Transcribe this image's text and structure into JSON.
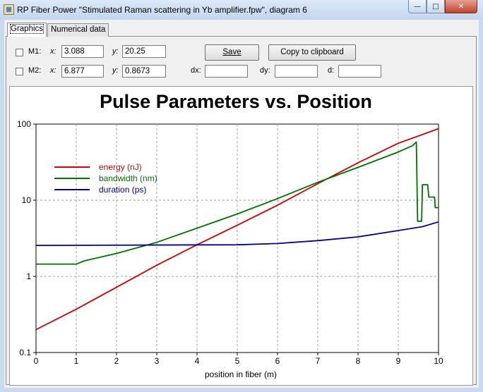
{
  "window": {
    "title": "RP Fiber Power \"Stimulated Raman scattering in Yb amplifier.fpw\", diagram 6",
    "min_glyph": "—",
    "max_glyph": "□",
    "close_glyph": "✕"
  },
  "tabs": [
    {
      "label": "Graphics",
      "active": true
    },
    {
      "label": "Numerical data",
      "active": false
    }
  ],
  "markers": {
    "m1": {
      "label": "M1:",
      "x_label": "x:",
      "x_value": "3.088",
      "y_label": "y:",
      "y_value": "20.25"
    },
    "m2": {
      "label": "M2:",
      "x_label": "x:",
      "x_value": "6.877",
      "y_label": "y:",
      "y_value": "0.8673"
    },
    "dx_label": "dx:",
    "dy_label": "dy:",
    "d_label": "d:",
    "dx_value": "",
    "dy_value": "",
    "d_value": ""
  },
  "buttons": {
    "save": "Save",
    "copy": "Copy to clipboard"
  },
  "chart_data": {
    "type": "line",
    "title": "Pulse Parameters vs. Position",
    "xlabel": "position in fiber (m)",
    "ylabel": "",
    "xlim": [
      0,
      10
    ],
    "ylim": [
      0.1,
      100
    ],
    "yscale": "log",
    "grid": true,
    "legend": "top-left",
    "x_ticks": [
      "0",
      "1",
      "2",
      "3",
      "4",
      "5",
      "6",
      "7",
      "8",
      "9",
      "10"
    ],
    "y_ticks": [
      "0.1",
      "1",
      "10",
      "100"
    ],
    "series": [
      {
        "name": "energy (nJ)",
        "color": "#cc0000",
        "points": [
          [
            0,
            0.2
          ],
          [
            1,
            0.37
          ],
          [
            2,
            0.72
          ],
          [
            3,
            1.4
          ],
          [
            4,
            2.6
          ],
          [
            5,
            4.7
          ],
          [
            6,
            8.6
          ],
          [
            7,
            16.5
          ],
          [
            8,
            31
          ],
          [
            9,
            56
          ],
          [
            10,
            87
          ]
        ]
      },
      {
        "name": "bandwidth (nm)",
        "color": "#007000",
        "points": [
          [
            0,
            1.45
          ],
          [
            1,
            1.45
          ],
          [
            1.2,
            1.6
          ],
          [
            2,
            2.0
          ],
          [
            3,
            2.8
          ],
          [
            4,
            4.3
          ],
          [
            5,
            6.6
          ],
          [
            6,
            10.5
          ],
          [
            7,
            17.2
          ],
          [
            8,
            27
          ],
          [
            9,
            43
          ],
          [
            9.35,
            52
          ],
          [
            9.45,
            58
          ],
          [
            9.48,
            5.3
          ],
          [
            9.58,
            5.3
          ],
          [
            9.6,
            16
          ],
          [
            9.73,
            16
          ],
          [
            9.76,
            11
          ],
          [
            9.9,
            11
          ],
          [
            9.92,
            8
          ],
          [
            10,
            8
          ]
        ]
      },
      {
        "name": "duration (ps)",
        "color": "#000088",
        "points": [
          [
            0,
            2.55
          ],
          [
            5,
            2.6
          ],
          [
            6,
            2.7
          ],
          [
            7,
            2.95
          ],
          [
            8,
            3.3
          ],
          [
            9,
            4.0
          ],
          [
            9.6,
            4.5
          ],
          [
            10,
            5.2
          ]
        ]
      }
    ]
  }
}
